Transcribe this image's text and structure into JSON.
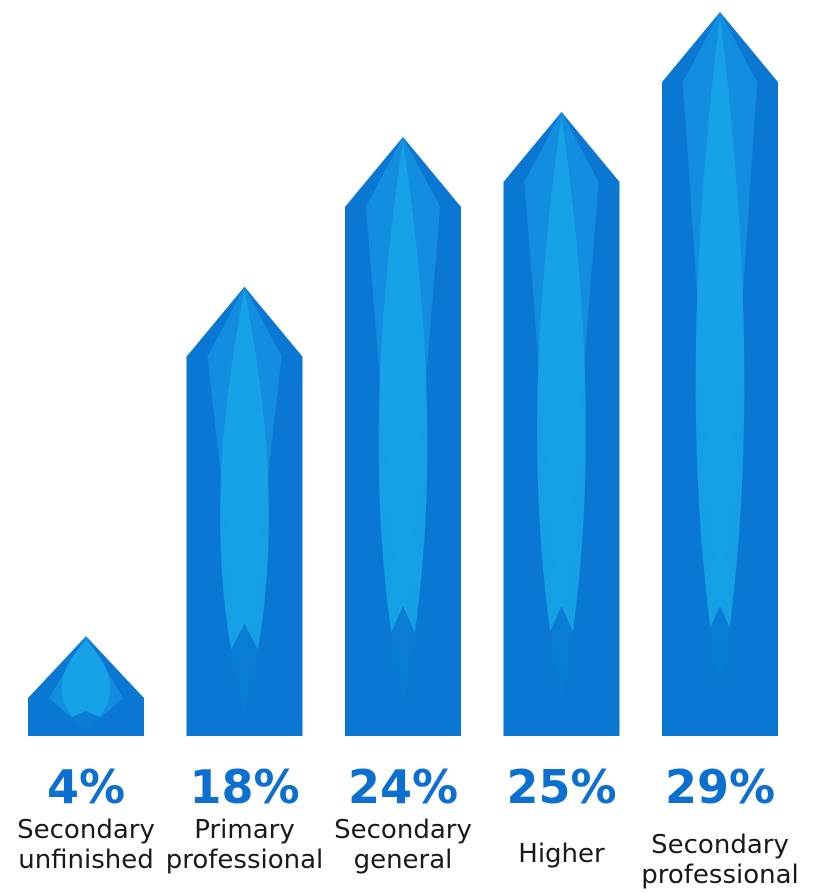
{
  "chart_data": {
    "type": "bar",
    "title": "",
    "xlabel": "",
    "ylabel": "",
    "ylim": [
      0,
      29
    ],
    "grid": false,
    "categories": [
      [
        "Secondary",
        "unfinished"
      ],
      [
        "Primary",
        "professional"
      ],
      [
        "Secondary",
        "general"
      ],
      [
        "Higher"
      ],
      [
        "Secondary",
        "professional"
      ]
    ],
    "values": [
      4,
      18,
      24,
      25,
      29
    ],
    "value_labels": [
      "4%",
      "18%",
      "24%",
      "25%",
      "29%"
    ]
  },
  "colors": {
    "bar_dark": "#0a78d2",
    "bar_mid": "#138de0",
    "bar_light": "#18a6e8",
    "value_text": "#0d6fcf"
  }
}
